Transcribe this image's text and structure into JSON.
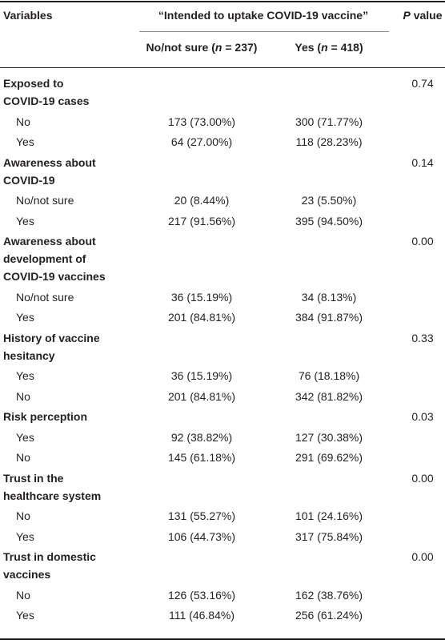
{
  "header": {
    "variables": "Variables",
    "group_title": "“Intended to uptake COVID-19 vaccine”",
    "p_label_italic": "P",
    "p_label_rest": " value",
    "col1_prefix": "No/not sure (",
    "col1_n": "n",
    "col1_suffix": " = 237)",
    "col2_prefix": "Yes (",
    "col2_n": "n",
    "col2_suffix": " = 418)"
  },
  "groups": [
    {
      "label_lines": [
        "Exposed to",
        "COVID-19 cases"
      ],
      "p_value": "0.74",
      "rows": [
        {
          "label": "No",
          "no_not_sure": "173 (73.00%)",
          "yes": "300 (71.77%)"
        },
        {
          "label": "Yes",
          "no_not_sure": "64 (27.00%)",
          "yes": "118 (28.23%)"
        }
      ]
    },
    {
      "label_lines": [
        "Awareness about",
        "COVID-19"
      ],
      "p_value": "0.14",
      "rows": [
        {
          "label": "No/not sure",
          "no_not_sure": "20 (8.44%)",
          "yes": "23 (5.50%)"
        },
        {
          "label": "Yes",
          "no_not_sure": "217 (91.56%)",
          "yes": "395 (94.50%)"
        }
      ]
    },
    {
      "label_lines": [
        "Awareness about",
        "development of",
        "COVID-19 vaccines"
      ],
      "p_value": "0.00",
      "rows": [
        {
          "label": "No/not sure",
          "no_not_sure": "36 (15.19%)",
          "yes": "34 (8.13%)"
        },
        {
          "label": "Yes",
          "no_not_sure": "201 (84.81%)",
          "yes": "384 (91.87%)"
        }
      ]
    },
    {
      "label_lines": [
        "History of vaccine",
        "hesitancy"
      ],
      "p_value": "0.33",
      "rows": [
        {
          "label": "Yes",
          "no_not_sure": "36 (15.19%)",
          "yes": "76 (18.18%)"
        },
        {
          "label": "No",
          "no_not_sure": "201 (84.81%)",
          "yes": "342 (81.82%)"
        }
      ]
    },
    {
      "label_lines": [
        "Risk perception"
      ],
      "p_value": "0.03",
      "rows": [
        {
          "label": "Yes",
          "no_not_sure": "92 (38.82%)",
          "yes": "127 (30.38%)"
        },
        {
          "label": "No",
          "no_not_sure": "145 (61.18%)",
          "yes": "291 (69.62%)"
        }
      ]
    },
    {
      "label_lines": [
        "Trust in the",
        "healthcare system"
      ],
      "p_value": "0.00",
      "rows": [
        {
          "label": "No",
          "no_not_sure": "131 (55.27%)",
          "yes": "101 (24.16%)"
        },
        {
          "label": "Yes",
          "no_not_sure": "106 (44.73%)",
          "yes": "317 (75.84%)"
        }
      ]
    },
    {
      "label_lines": [
        "Trust in domestic",
        "vaccines"
      ],
      "p_value": "0.00",
      "rows": [
        {
          "label": "No",
          "no_not_sure": "126 (53.16%)",
          "yes": "162 (38.76%)"
        },
        {
          "label": "Yes",
          "no_not_sure": "111 (46.84%)",
          "yes": "256 (61.24%)"
        }
      ]
    }
  ]
}
